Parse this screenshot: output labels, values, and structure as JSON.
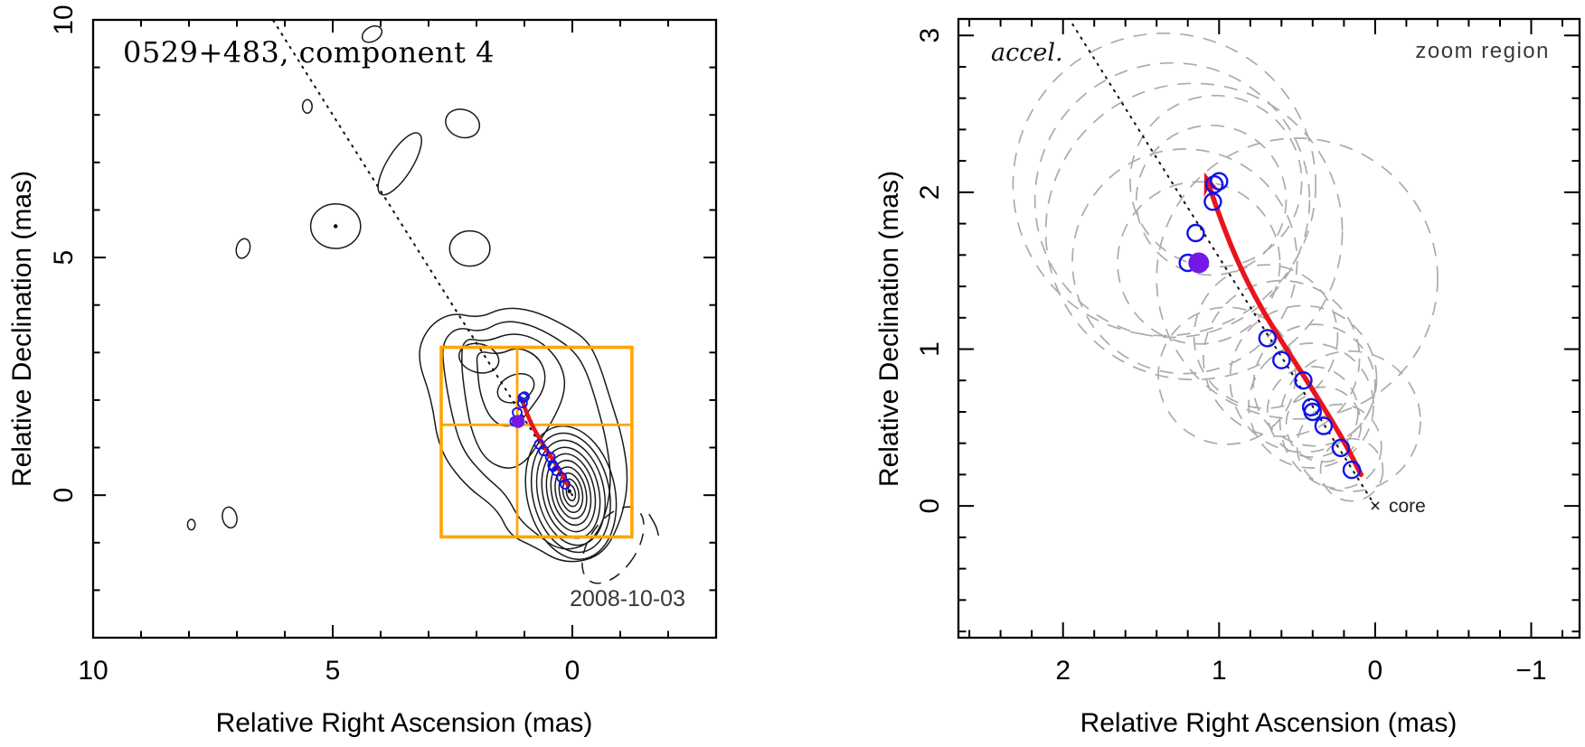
{
  "figure": {
    "background": "#ffffff"
  },
  "colors": {
    "component_open": "#0f12ea",
    "component_filled": "#7418e6",
    "trajectory": "#e8141e",
    "zoom_box": "#ffa500",
    "size_circles": "#ababab",
    "contours": "#1a1a1a",
    "jet_axis_line": "#151515",
    "annotation_gray": "#3a3a3a"
  },
  "chart_data": {
    "left_panel": {
      "type": "contour_map",
      "title": "0529+483, component 4",
      "date": "2008-10-03",
      "xlabel": "Relative Right Ascension (mas)",
      "ylabel": "Relative Declination (mas)",
      "xlim": [
        10,
        -3
      ],
      "ylim": [
        -3,
        10
      ],
      "x_axis_reversed": true,
      "grid": false,
      "xticks": {
        "minor_step": 1,
        "majors": [
          0,
          5,
          10
        ],
        "labels": [
          {
            "t": "10",
            "v": 10
          },
          {
            "t": "5",
            "v": 5
          },
          {
            "t": "0",
            "v": 0
          }
        ]
      },
      "yticks": {
        "minor_step": 1,
        "majors": [
          0,
          5,
          10
        ],
        "labels": [
          {
            "t": "0",
            "v": 0
          },
          {
            "t": "5",
            "v": 5
          },
          {
            "t": "10",
            "v": 10
          }
        ]
      },
      "zoom_box": {
        "ra_range": [
          2.735,
          -1.245
        ],
        "dec_range": [
          -0.88,
          3.11
        ],
        "cross_ra": 1.15,
        "cross_dec": 1.48
      },
      "jet_axis_line": {
        "from": [
          0,
          0
        ],
        "to": [
          6.25,
          10
        ]
      },
      "core_contours": {
        "center": [
          0.03,
          0.05
        ],
        "rotation_deg": -12,
        "levels_rx_ry_mas": [
          [
            0.92,
            1.42
          ],
          [
            0.8,
            1.27
          ],
          [
            0.69,
            1.12
          ],
          [
            0.585,
            0.97
          ],
          [
            0.49,
            0.83
          ],
          [
            0.4,
            0.69
          ],
          [
            0.315,
            0.55
          ],
          [
            0.235,
            0.42
          ],
          [
            0.16,
            0.29
          ],
          [
            0.09,
            0.17
          ]
        ]
      },
      "jet_contours": [
        [
          [
            2.55,
            3.85
          ],
          [
            1.95,
            3.72
          ],
          [
            1.45,
            3.95
          ],
          [
            0.85,
            3.9
          ],
          [
            0.2,
            3.6
          ],
          [
            -0.3,
            3.28
          ],
          [
            -0.55,
            2.8
          ],
          [
            -0.8,
            2.0
          ],
          [
            -1.05,
            1.2
          ],
          [
            -1.18,
            0.3
          ],
          [
            -1.0,
            -0.6
          ],
          [
            -0.6,
            -1.3
          ],
          [
            0.18,
            -1.45
          ],
          [
            0.8,
            -1.08
          ],
          [
            1.31,
            -0.85
          ],
          [
            1.56,
            -0.29
          ],
          [
            2.25,
            0.21
          ],
          [
            2.79,
            0.97
          ],
          [
            2.94,
            2.04
          ],
          [
            3.25,
            2.9
          ],
          [
            3.05,
            3.5
          ]
        ],
        [
          [
            2.4,
            3.55
          ],
          [
            1.9,
            3.42
          ],
          [
            1.45,
            3.68
          ],
          [
            0.9,
            3.6
          ],
          [
            0.35,
            3.32
          ],
          [
            -0.05,
            3.02
          ],
          [
            -0.3,
            2.6
          ],
          [
            -0.52,
            1.9
          ],
          [
            -0.72,
            1.1
          ],
          [
            -0.82,
            0.3
          ],
          [
            -0.68,
            -0.5
          ],
          [
            -0.35,
            -1.05
          ],
          [
            0.25,
            -1.18
          ],
          [
            0.75,
            -0.82
          ],
          [
            1.12,
            -0.5
          ],
          [
            1.38,
            0.02
          ],
          [
            1.85,
            0.42
          ],
          [
            2.3,
            0.95
          ],
          [
            2.52,
            1.7
          ],
          [
            2.68,
            2.6
          ],
          [
            2.72,
            3.22
          ]
        ],
        [
          [
            2.28,
            3.32
          ],
          [
            1.8,
            3.22
          ],
          [
            1.3,
            3.42
          ],
          [
            0.8,
            3.32
          ],
          [
            0.42,
            3.02
          ],
          [
            0.18,
            2.62
          ],
          [
            0.15,
            2.18
          ],
          [
            0.35,
            1.68
          ],
          [
            0.65,
            1.18
          ],
          [
            0.95,
            0.72
          ],
          [
            1.32,
            0.52
          ],
          [
            1.8,
            0.72
          ],
          [
            2.08,
            1.25
          ],
          [
            2.22,
            1.95
          ],
          [
            2.32,
            2.75
          ]
        ],
        [
          [
            2.0,
            3.05
          ],
          [
            1.55,
            2.95
          ],
          [
            1.15,
            3.12
          ],
          [
            0.75,
            2.95
          ],
          [
            0.55,
            2.6
          ],
          [
            0.6,
            2.2
          ],
          [
            0.85,
            1.85
          ],
          [
            1.1,
            1.52
          ],
          [
            1.42,
            1.42
          ],
          [
            1.72,
            1.62
          ],
          [
            1.92,
            2.1
          ],
          [
            1.98,
            2.6
          ]
        ]
      ],
      "jet_inner_ellipses": [
        {
          "c": [
            1.18,
            2.25
          ],
          "rx": 0.4,
          "ry": 0.28,
          "rot": -25
        },
        {
          "c": [
            1.95,
            2.88
          ],
          "rx": 0.42,
          "ry": 0.3,
          "rot": 15
        }
      ],
      "noise_blobs": [
        {
          "c": [
            4.18,
            9.7
          ],
          "rx": 0.22,
          "ry": 0.15,
          "rot": -30
        },
        {
          "c": [
            5.53,
            8.18
          ],
          "rx": 0.1,
          "ry": 0.14,
          "rot": 0
        },
        {
          "c": [
            2.29,
            7.82
          ],
          "rx": 0.36,
          "ry": 0.29,
          "rot": 20
        },
        {
          "c": [
            3.6,
            6.97
          ],
          "rx": 0.26,
          "ry": 0.75,
          "rot": 32
        },
        {
          "c": [
            4.94,
            5.66
          ],
          "rx": 0.52,
          "ry": 0.47,
          "rot": 0
        },
        {
          "c": [
            6.87,
            5.19
          ],
          "rx": 0.14,
          "ry": 0.21,
          "rot": 15
        },
        {
          "c": [
            2.14,
            5.19
          ],
          "rx": 0.42,
          "ry": 0.37,
          "rot": 0
        },
        {
          "c": [
            7.95,
            -0.62
          ],
          "rx": 0.08,
          "ry": 0.11,
          "rot": 0
        },
        {
          "c": [
            7.15,
            -0.47
          ],
          "rx": 0.15,
          "ry": 0.22,
          "rot": -12
        }
      ],
      "negative_contour": {
        "c": [
          -0.85,
          -1.05
        ],
        "rx": 0.5,
        "ry": 0.9,
        "rot": 33,
        "style": "dashed"
      },
      "contour_fragment": [
        [
          -1.6,
          -0.4
        ],
        [
          -1.74,
          -0.62
        ],
        [
          -1.8,
          -0.85
        ]
      ],
      "center_dots": [
        [
          0.06,
          0.08
        ],
        [
          4.94,
          5.66
        ]
      ]
    },
    "right_panel": {
      "type": "scatter",
      "accel_label": "accel.",
      "zoom_region_label": "zoom region",
      "core_marker": "×",
      "core_label": "core",
      "core_position": [
        0,
        0
      ],
      "xlabel": "Relative Right Ascension (mas)",
      "ylabel": "Relative Declination (mas)",
      "xlim": [
        2.67,
        -1.31
      ],
      "ylim": [
        -0.84,
        3.105
      ],
      "x_axis_reversed": true,
      "grid": false,
      "xticks": {
        "minor_step": 0.2,
        "majors": [
          -1,
          0,
          1,
          2
        ],
        "labels": [
          {
            "t": "2",
            "v": 2
          },
          {
            "t": "1",
            "v": 1
          },
          {
            "t": "0",
            "v": 0
          },
          {
            "t": "−1",
            "v": -1
          }
        ]
      },
      "yticks": {
        "minor_step": 0.2,
        "majors": [
          0,
          1,
          2,
          3
        ],
        "labels": [
          {
            "t": "0",
            "v": 0
          },
          {
            "t": "1",
            "v": 1
          },
          {
            "t": "2",
            "v": 2
          },
          {
            "t": "3",
            "v": 3
          }
        ]
      },
      "jet_axis_line": {
        "from": [
          0,
          0
        ],
        "to": [
          1.96,
          3.105
        ]
      }
    },
    "shared": {
      "components_ra_dec_mas": [
        [
          0.15,
          0.23
        ],
        [
          0.22,
          0.37
        ],
        [
          0.33,
          0.51
        ],
        [
          0.4,
          0.6
        ],
        [
          0.41,
          0.63
        ],
        [
          0.46,
          0.8
        ],
        [
          0.6,
          0.93
        ],
        [
          0.69,
          1.07
        ],
        [
          1.2,
          1.55
        ],
        [
          1.15,
          1.74
        ],
        [
          1.04,
          1.94
        ],
        [
          1.03,
          2.05
        ],
        [
          1.0,
          2.07
        ]
      ],
      "filled_component_ra_dec_mas": [
        1.13,
        1.55
      ],
      "component_size_circles_ra_dec_r_mas": [
        [
          0.15,
          0.23,
          0.2
        ],
        [
          0.23,
          0.38,
          0.27
        ],
        [
          0.33,
          0.52,
          0.24
        ],
        [
          0.4,
          0.6,
          0.29
        ],
        [
          0.41,
          0.64,
          0.4
        ],
        [
          0.39,
          0.77,
          0.39
        ],
        [
          0.16,
          0.54,
          0.45
        ],
        [
          0.46,
          0.81,
          0.47
        ],
        [
          0.6,
          0.94,
          0.5
        ],
        [
          0.7,
          1.08,
          0.46
        ],
        [
          0.95,
          0.83,
          0.44
        ],
        [
          0.5,
          1.45,
          0.9
        ],
        [
          1.13,
          1.55,
          0.52
        ],
        [
          1.22,
          1.56,
          0.72
        ],
        [
          1.16,
          1.75,
          0.95
        ],
        [
          1.3,
          1.95,
          0.88
        ],
        [
          1.35,
          2.05,
          0.97
        ],
        [
          1.05,
          1.95,
          0.48
        ],
        [
          1.02,
          2.07,
          0.55
        ]
      ],
      "trajectory_fit": [
        [
          0.09,
          0.2
        ],
        [
          0.18,
          0.38
        ],
        [
          0.3,
          0.58
        ],
        [
          0.45,
          0.82
        ],
        [
          0.62,
          1.08
        ],
        [
          0.78,
          1.35
        ],
        [
          0.9,
          1.6
        ],
        [
          0.99,
          1.83
        ],
        [
          1.06,
          2.03
        ]
      ]
    }
  }
}
